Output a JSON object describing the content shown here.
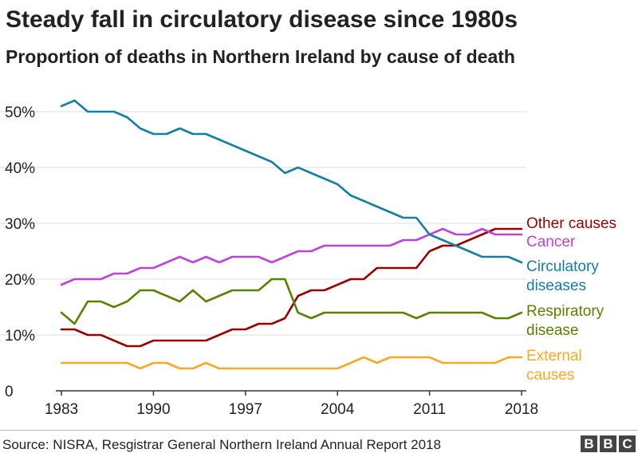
{
  "header": {
    "title": "Steady fall in circulatory disease since 1980s",
    "subtitle": "Proportion of deaths in Northern Ireland by cause of death"
  },
  "footer": {
    "source": "Source: NISRA, Resgistrar General Northern Ireland Annual Report 2018",
    "logo_letters": [
      "B",
      "B",
      "C"
    ]
  },
  "chart_data": {
    "type": "line",
    "title": "Steady fall in circulatory disease since 1980s",
    "subtitle": "Proportion of deaths in Northern Ireland by cause of death",
    "xlabel": "",
    "ylabel": "",
    "x": [
      1983,
      1984,
      1985,
      1986,
      1987,
      1988,
      1989,
      1990,
      1991,
      1992,
      1993,
      1994,
      1995,
      1996,
      1997,
      1998,
      1999,
      2000,
      2001,
      2002,
      2003,
      2004,
      2005,
      2006,
      2007,
      2008,
      2009,
      2010,
      2011,
      2012,
      2013,
      2014,
      2015,
      2016,
      2017,
      2018
    ],
    "xlim": [
      1983,
      2018
    ],
    "ylim": [
      0,
      52
    ],
    "x_ticks": [
      1983,
      1990,
      1997,
      2004,
      2011,
      2018
    ],
    "x_tick_labels": [
      "1983",
      "1990",
      "1997",
      "2004",
      "2011",
      "2018"
    ],
    "y_ticks": [
      0,
      10,
      20,
      30,
      40,
      50
    ],
    "y_tick_labels": [
      "0",
      "10%",
      "20%",
      "30%",
      "40%",
      "50%"
    ],
    "grid": true,
    "legend": "direct labels at right end of lines",
    "series": [
      {
        "name": "Other causes",
        "label_lines": [
          "Other causes"
        ],
        "color": "#990000",
        "values": [
          11,
          11,
          10,
          10,
          9,
          8,
          8,
          9,
          9,
          9,
          9,
          9,
          10,
          11,
          11,
          12,
          12,
          13,
          17,
          18,
          18,
          19,
          20,
          20,
          22,
          22,
          22,
          22,
          25,
          26,
          26,
          27,
          28,
          29,
          29,
          29
        ]
      },
      {
        "name": "Cancer",
        "label_lines": [
          "Cancer"
        ],
        "color": "#bb44dd",
        "values": [
          19,
          20,
          20,
          20,
          21,
          21,
          22,
          22,
          23,
          24,
          23,
          24,
          23,
          24,
          24,
          24,
          23,
          24,
          25,
          25,
          26,
          26,
          26,
          26,
          26,
          26,
          27,
          27,
          28,
          29,
          28,
          28,
          29,
          28,
          28,
          28
        ]
      },
      {
        "name": "Circulatory diseases",
        "label_lines": [
          "Circulatory",
          "diseases"
        ],
        "color": "#1380a1",
        "values": [
          51,
          52,
          50,
          50,
          50,
          49,
          47,
          46,
          46,
          47,
          46,
          46,
          45,
          44,
          43,
          42,
          41,
          39,
          40,
          39,
          38,
          37,
          35,
          34,
          33,
          32,
          31,
          31,
          28,
          27,
          26,
          25,
          24,
          24,
          24,
          23
        ]
      },
      {
        "name": "Respiratory disease",
        "label_lines": [
          "Respiratory",
          "disease"
        ],
        "color": "#588300",
        "values": [
          14,
          12,
          16,
          16,
          15,
          16,
          18,
          18,
          17,
          16,
          18,
          16,
          17,
          18,
          18,
          18,
          20,
          20,
          14,
          13,
          14,
          14,
          14,
          14,
          14,
          14,
          14,
          13,
          14,
          14,
          14,
          14,
          14,
          13,
          13,
          14
        ]
      },
      {
        "name": "External causes",
        "label_lines": [
          "External",
          "causes"
        ],
        "color": "#fda725",
        "values": [
          5,
          5,
          5,
          5,
          5,
          5,
          4,
          5,
          5,
          4,
          4,
          5,
          4,
          4,
          4,
          4,
          4,
          4,
          4,
          4,
          4,
          4,
          5,
          6,
          5,
          6,
          6,
          6,
          6,
          5,
          5,
          5,
          5,
          5,
          6,
          6
        ]
      }
    ]
  }
}
